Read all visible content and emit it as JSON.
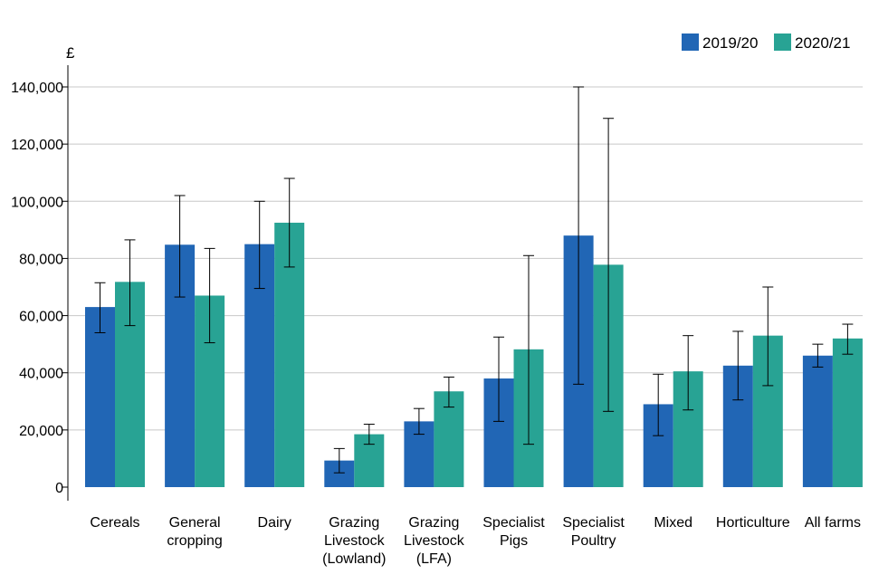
{
  "chart_data": {
    "type": "bar",
    "title": "",
    "ylabel": "£",
    "xlabel": "",
    "ylim": [
      0,
      150000
    ],
    "yticks": [
      0,
      20000,
      40000,
      60000,
      80000,
      100000,
      120000,
      140000
    ],
    "ytick_labels": [
      "0",
      "20,000",
      "40,000",
      "60,000",
      "80,000",
      "100,000",
      "120,000",
      "140,000"
    ],
    "grid": true,
    "legend_position": "top-right",
    "categories": [
      [
        "Cereals"
      ],
      [
        "General",
        "cropping"
      ],
      [
        "Dairy"
      ],
      [
        "Grazing",
        "Livestock",
        "(Lowland)"
      ],
      [
        "Grazing",
        "Livestock",
        "(LFA)"
      ],
      [
        "Specialist",
        "Pigs"
      ],
      [
        "Specialist",
        "Poultry"
      ],
      [
        "Mixed"
      ],
      [
        "Horticulture"
      ],
      [
        "All farms"
      ]
    ],
    "series": [
      {
        "name": "2019/20",
        "color": "#2166b5",
        "values": [
          63000,
          84800,
          85000,
          9300,
          23000,
          38000,
          88000,
          29000,
          42500,
          46000
        ],
        "error_low": [
          54000,
          66500,
          69500,
          5000,
          18500,
          23000,
          36000,
          18000,
          30500,
          42000
        ],
        "error_high": [
          71500,
          102000,
          100000,
          13500,
          27500,
          52500,
          140000,
          39500,
          54500,
          50000
        ]
      },
      {
        "name": "2020/21",
        "color": "#28a394",
        "values": [
          71800,
          67000,
          92500,
          18500,
          33500,
          48200,
          77800,
          40500,
          53000,
          52000
        ],
        "error_low": [
          56500,
          50500,
          77000,
          15000,
          28000,
          15000,
          26500,
          27000,
          35500,
          46500
        ],
        "error_high": [
          86500,
          83500,
          108000,
          22000,
          38500,
          81000,
          129000,
          53000,
          70000,
          57000
        ]
      }
    ]
  }
}
